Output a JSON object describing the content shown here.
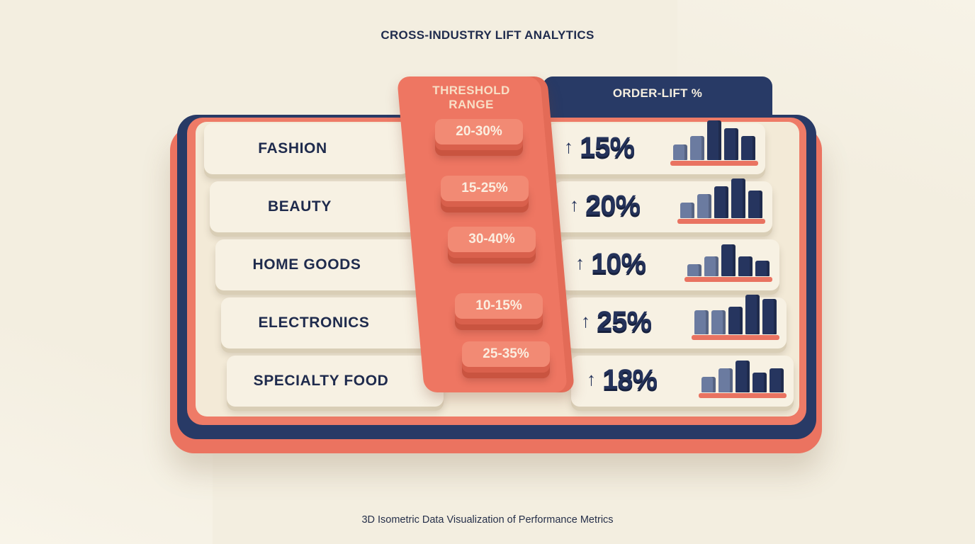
{
  "title": "CROSS-INDUSTRY LIFT ANALYTICS",
  "caption": "3D Isometric Data Visualization of Performance Metrics",
  "columns": {
    "threshold": "THRESHOLD RANGE",
    "threshold_line1": "THRESHOLD",
    "threshold_line2": "RANGE",
    "order_lift": "ORDER-LIFT %"
  },
  "arrow_glyph": "↑",
  "colors": {
    "coral": "#ee7662",
    "navy": "#283a66",
    "cream": "#f7f1e3",
    "bar_light": "#6b7ba0",
    "bar_dark": "#26355f"
  },
  "chart_data": {
    "type": "table",
    "title": "CROSS-INDUSTRY LIFT ANALYTICS",
    "columns": [
      "THRESHOLD RANGE",
      "ORDER-LIFT %"
    ],
    "rows": [
      {
        "category": "FASHION",
        "threshold": "20-30%",
        "lift": "15%",
        "lift_value": 15,
        "trend": [
          2,
          3,
          5,
          4,
          3
        ],
        "trend_dark_from": 2
      },
      {
        "category": "BEAUTY",
        "threshold": "15-25%",
        "lift": "20%",
        "lift_value": 20,
        "trend": [
          2,
          3,
          4,
          5,
          3.5
        ],
        "trend_dark_from": 2
      },
      {
        "category": "HOME GOODS",
        "threshold": "30-40%",
        "lift": "10%",
        "lift_value": 10,
        "trend": [
          1.5,
          2.5,
          4,
          2.5,
          2
        ],
        "trend_dark_from": 2
      },
      {
        "category": "ELECTRONICS",
        "threshold": "10-15%",
        "lift": "25%",
        "lift_value": 25,
        "trend": [
          3,
          3,
          3.5,
          5,
          4.5
        ],
        "trend_dark_from": 2
      },
      {
        "category": "SPECIALTY FOOD",
        "threshold": "25-35%",
        "lift": "18%",
        "lift_value": 18,
        "trend": [
          2,
          3,
          4,
          2.5,
          3
        ],
        "trend_dark_from": 2
      }
    ]
  }
}
